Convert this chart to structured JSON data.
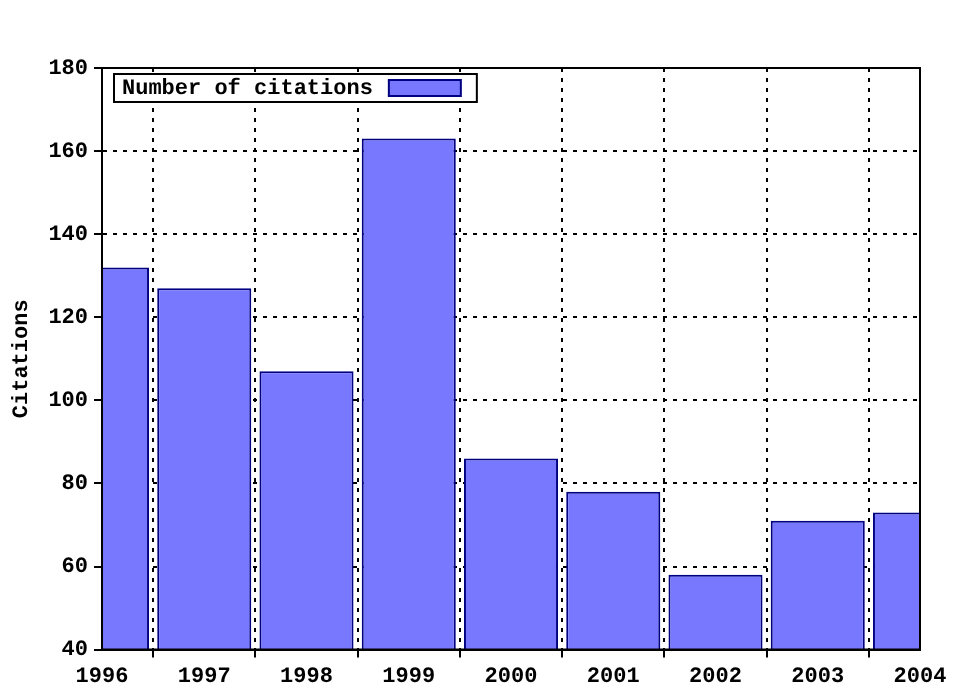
{
  "chart_data": {
    "type": "bar",
    "x": [
      1996,
      1997,
      1998,
      1999,
      2000,
      2001,
      2002,
      2003,
      2004
    ],
    "series": [
      {
        "name": "Number of citations",
        "color": "#7878ff",
        "values": [
          132,
          127,
          107,
          163,
          86,
          78,
          58,
          71,
          73
        ]
      }
    ],
    "xlim": [
      1996,
      2004
    ],
    "xticks": [
      1996,
      1997,
      1998,
      1999,
      2000,
      2001,
      2002,
      2003,
      2004
    ],
    "ylim": [
      40,
      180
    ],
    "yticks": [
      40,
      60,
      80,
      100,
      120,
      140,
      160,
      180
    ],
    "ylabel": "Citations",
    "grid": true,
    "legend": "top left"
  }
}
